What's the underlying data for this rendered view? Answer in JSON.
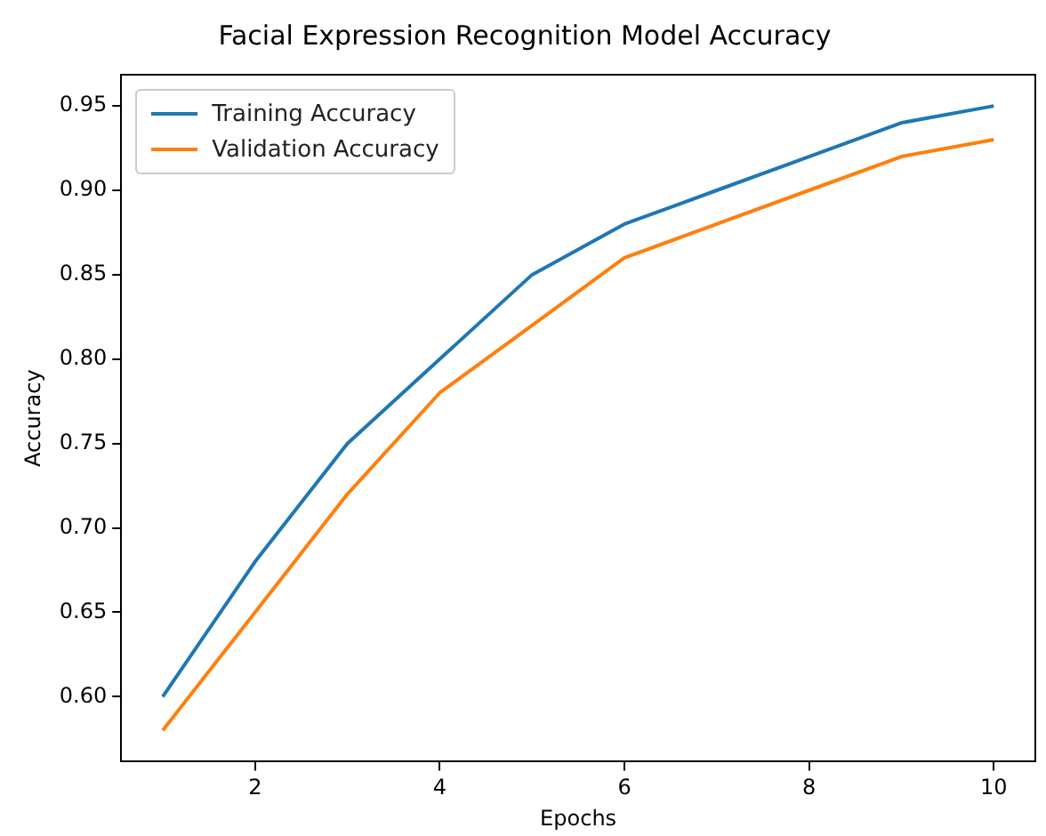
{
  "chart_data": {
    "type": "line",
    "title": "Facial Expression Recognition Model Accuracy",
    "xlabel": "Epochs",
    "ylabel": "Accuracy",
    "x": [
      1,
      2,
      3,
      4,
      5,
      6,
      7,
      8,
      9,
      10
    ],
    "series": [
      {
        "name": "Training Accuracy",
        "color": "#1f77b4",
        "values": [
          0.6,
          0.68,
          0.75,
          0.8,
          0.85,
          0.88,
          0.9,
          0.92,
          0.94,
          0.95
        ]
      },
      {
        "name": "Validation Accuracy",
        "color": "#ff7f0e",
        "values": [
          0.58,
          0.65,
          0.72,
          0.78,
          0.82,
          0.86,
          0.88,
          0.9,
          0.92,
          0.93
        ]
      }
    ],
    "xlim": [
      0.55,
      10.45
    ],
    "xticks": [
      2,
      4,
      6,
      8,
      10
    ],
    "ylim": [
      0.5615,
      0.9685
    ],
    "yticks": [
      {
        "value": 0.6,
        "label": "0.60"
      },
      0.65,
      {
        "value": 0.7,
        "label": "0.70"
      },
      0.75,
      {
        "value": 0.8,
        "label": "0.80"
      },
      0.85,
      {
        "value": 0.9,
        "label": "0.90"
      },
      0.95
    ],
    "grid": false,
    "legend": "top left",
    "marker": "none",
    "line_style": "solid"
  }
}
